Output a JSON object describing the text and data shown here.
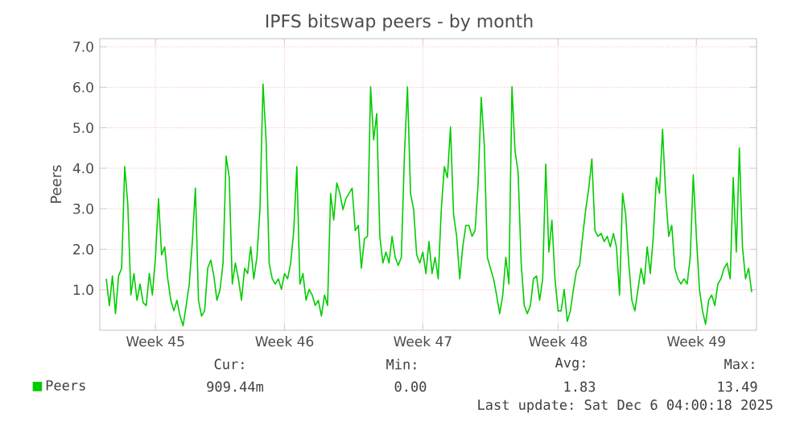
{
  "chart_data": {
    "type": "line",
    "title": "IPFS bitswap peers - by month",
    "ylabel": "Peers",
    "categories": [
      null,
      null,
      null,
      null,
      null,
      null,
      null,
      null,
      null,
      null,
      null,
      null,
      null,
      null,
      null,
      null,
      "Week 45",
      null,
      null,
      null,
      null,
      null,
      null,
      null,
      null,
      null,
      null,
      null,
      null,
      null,
      null,
      null,
      null,
      null,
      null,
      null,
      null,
      null,
      null,
      null,
      null,
      null,
      null,
      null,
      null,
      null,
      null,
      null,
      null,
      null,
      null,
      null,
      null,
      null,
      null,
      null,
      null,
      null,
      "Week 46",
      null,
      null,
      null,
      null,
      null,
      null,
      null,
      null,
      null,
      null,
      null,
      null,
      null,
      null,
      null,
      null,
      null,
      null,
      null,
      null,
      null,
      null,
      null,
      null,
      null,
      null,
      null,
      null,
      null,
      null,
      null,
      null,
      null,
      null,
      null,
      null,
      null,
      null,
      null,
      null,
      null,
      null,
      null,
      null,
      "Week 47",
      null,
      null,
      null,
      null,
      null,
      null,
      null,
      null,
      null,
      null,
      null,
      null,
      null,
      null,
      null,
      null,
      null,
      null,
      null,
      null,
      null,
      null,
      null,
      null,
      null,
      null,
      null,
      null,
      null,
      null,
      null,
      null,
      null,
      null,
      null,
      null,
      null,
      null,
      null,
      null,
      null,
      null,
      null,
      "Week 48",
      null,
      null,
      null,
      null,
      null,
      null,
      null,
      null,
      null,
      null,
      null,
      null,
      null,
      null,
      null,
      null,
      null,
      null,
      null,
      null,
      null,
      null,
      null,
      null,
      null,
      null,
      null,
      null,
      null,
      null,
      null,
      null,
      null,
      null,
      null,
      null,
      null,
      null,
      null,
      null,
      null,
      null,
      null,
      null,
      "Week 49",
      null,
      null,
      null,
      null,
      null,
      null,
      null,
      null,
      null,
      null,
      null,
      null,
      null,
      null,
      null,
      null,
      null,
      null
    ],
    "series": [
      {
        "name": "Peers",
        "color": "#00cc00",
        "values": [
          1.27,
          0.61,
          1.34,
          0.41,
          1.34,
          1.53,
          4.04,
          3.11,
          0.87,
          1.4,
          0.74,
          1.14,
          0.68,
          0.61,
          1.4,
          0.87,
          1.8,
          3.25,
          1.86,
          2.06,
          1.27,
          0.74,
          0.48,
          0.74,
          0.35,
          0.11,
          0.61,
          1.14,
          2.19,
          3.51,
          0.74,
          0.35,
          0.48,
          1.53,
          1.73,
          1.34,
          0.74,
          1.0,
          1.66,
          4.3,
          3.77,
          1.14,
          1.66,
          1.27,
          0.74,
          1.53,
          1.4,
          2.06,
          1.27,
          1.8,
          2.98,
          6.08,
          4.7,
          1.66,
          1.27,
          1.14,
          1.27,
          1.01,
          1.4,
          1.27,
          1.66,
          2.46,
          4.04,
          1.14,
          1.4,
          0.74,
          1.01,
          0.87,
          0.61,
          0.74,
          0.35,
          0.87,
          0.61,
          3.38,
          2.72,
          3.64,
          3.38,
          2.98,
          3.25,
          3.38,
          3.51,
          2.46,
          2.59,
          1.53,
          2.26,
          2.32,
          6.01,
          4.7,
          5.35,
          2.32,
          1.66,
          1.93,
          1.66,
          2.32,
          1.8,
          1.6,
          1.8,
          4.3,
          6.01,
          3.38,
          2.98,
          1.86,
          1.66,
          1.93,
          1.4,
          2.19,
          1.4,
          1.8,
          1.27,
          2.98,
          4.04,
          3.77,
          5.02,
          2.85,
          2.32,
          1.27,
          2.06,
          2.59,
          2.59,
          2.32,
          2.46,
          3.64,
          5.75,
          4.56,
          1.8,
          1.53,
          1.27,
          0.87,
          0.41,
          0.87,
          1.8,
          1.14,
          6.01,
          4.43,
          3.9,
          1.66,
          0.61,
          0.41,
          0.61,
          1.27,
          1.34,
          0.74,
          1.27,
          4.1,
          1.93,
          2.72,
          1.27,
          0.48,
          0.48,
          1.01,
          0.22,
          0.48,
          1.01,
          1.47,
          1.6,
          2.32,
          2.98,
          3.51,
          4.23,
          2.46,
          2.32,
          2.39,
          2.19,
          2.32,
          2.06,
          2.39,
          2.06,
          0.87,
          3.38,
          2.85,
          1.66,
          0.74,
          0.48,
          1.01,
          1.53,
          1.14,
          2.06,
          1.4,
          2.32,
          3.77,
          3.38,
          4.96,
          3.38,
          2.32,
          2.59,
          1.53,
          1.27,
          1.14,
          1.27,
          1.14,
          1.8,
          3.84,
          2.32,
          1.01,
          0.48,
          0.15,
          0.74,
          0.87,
          0.61,
          1.14,
          1.27,
          1.53,
          1.66,
          1.27,
          3.77,
          1.93,
          4.5,
          2.06,
          1.27,
          1.53,
          0.94
        ]
      }
    ],
    "ylim": [
      0,
      7.2
    ],
    "yticks": [
      {
        "value": 1,
        "label": "1.0"
      },
      {
        "value": 2,
        "label": "2.0"
      },
      {
        "value": 3,
        "label": "3.0"
      },
      {
        "value": 4,
        "label": "4.0"
      },
      {
        "value": 5,
        "label": "5.0"
      },
      {
        "value": 6,
        "label": "6.0"
      },
      {
        "value": 7,
        "label": "7.0"
      }
    ],
    "grid": true,
    "legend": "bottom",
    "marker": "none",
    "line_style": "solid",
    "annotations": [
      "Cur:",
      "909.44m",
      "Min:",
      "0.00",
      "Avg:",
      "1.83",
      "Max:",
      "13.49",
      "Last update: Sat Dec  6 04:00:18 2025"
    ]
  }
}
